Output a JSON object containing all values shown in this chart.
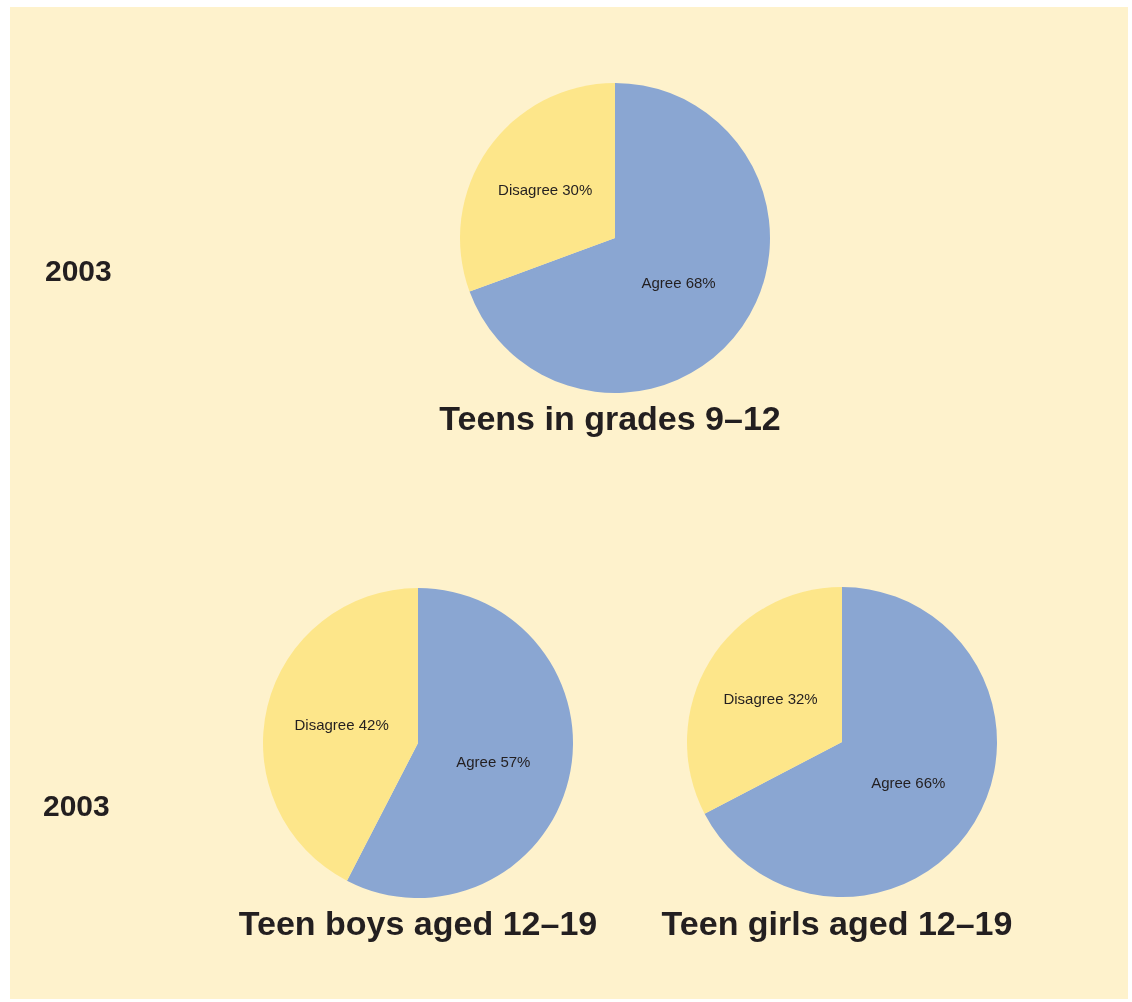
{
  "chart_data": [
    {
      "type": "pie",
      "title": "Teens in grades 9–12",
      "categories": [
        "Agree",
        "Disagree"
      ],
      "values": [
        68,
        30
      ],
      "colors": [
        "#8aa6d2",
        "#fde68a"
      ],
      "value_labels": [
        "68%",
        "30%"
      ],
      "annotations": [
        "2003"
      ]
    },
    {
      "type": "pie",
      "title": "Teen boys aged 12–19",
      "categories": [
        "Agree",
        "Disagree"
      ],
      "values": [
        57,
        42
      ],
      "colors": [
        "#8aa6d2",
        "#fde68a"
      ],
      "value_labels": [
        "57%",
        "42%"
      ],
      "annotations": [
        "2003"
      ]
    },
    {
      "type": "pie",
      "title": "Teen girls aged 12–19",
      "categories": [
        "Agree",
        "Disagree"
      ],
      "values": [
        66,
        32
      ],
      "colors": [
        "#8aa6d2",
        "#fde68a"
      ],
      "value_labels": [
        "66%",
        "32%"
      ]
    }
  ]
}
